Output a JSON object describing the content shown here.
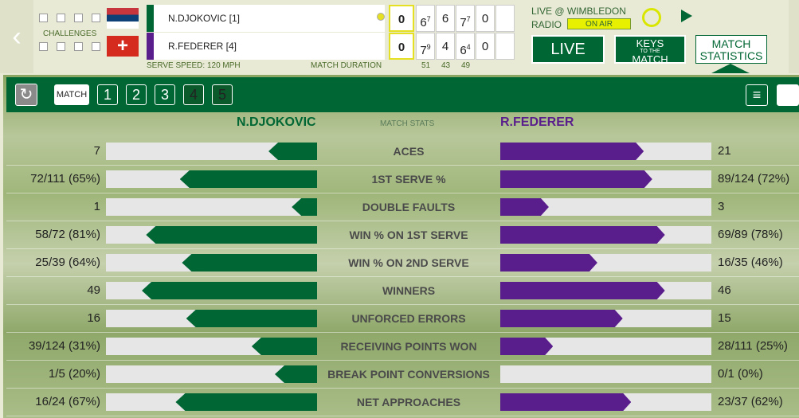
{
  "header": {
    "challenges_label": "CHALLENGES",
    "players": [
      {
        "name": "N.DJOKOVIC [1]",
        "game": "0",
        "sets": [
          {
            "games": "6",
            "tb": "7"
          },
          {
            "games": "6",
            "tb": null
          },
          {
            "games": "7",
            "tb": "7"
          },
          {
            "games": "0",
            "tb": null
          }
        ]
      },
      {
        "name": "R.FEDERER [4]",
        "game": "0",
        "sets": [
          {
            "games": "7",
            "tb": "9"
          },
          {
            "games": "4",
            "tb": null
          },
          {
            "games": "6",
            "tb": "4"
          },
          {
            "games": "0",
            "tb": null
          }
        ]
      }
    ],
    "serve_speed": "SERVE SPEED: 120 MPH",
    "match_duration": "MATCH DURATION",
    "durations": [
      "51",
      "43",
      "49"
    ],
    "live_text": "LIVE @ WIMBLEDON",
    "radio": "RADIO",
    "on_air": "ON AIR",
    "live_button": "LIVE",
    "keys_button": [
      "KEYS",
      "TO THE",
      "MATCH"
    ],
    "stats_button": [
      "MATCH",
      "STATISTICS"
    ]
  },
  "tabs": [
    "MATCH",
    "1",
    "2",
    "3",
    "4",
    "5"
  ],
  "stats": {
    "player1": "N.DJOKOVIC",
    "label": "MATCH STATS",
    "player2": "R.FEDERER",
    "rows": [
      {
        "label": "ACES",
        "p1": "7",
        "p2": "21",
        "p1_bar": 23,
        "p2_bar": 68
      },
      {
        "label": "1ST SERVE %",
        "p1": "72/111 (65%)",
        "p2": "89/124 (72%)",
        "p1_bar": 65,
        "p2_bar": 72
      },
      {
        "label": "DOUBLE FAULTS",
        "p1": "1",
        "p2": "3",
        "p1_bar": 12,
        "p2_bar": 23
      },
      {
        "label": "WIN % ON 1ST SERVE",
        "p1": "58/72 (81%)",
        "p2": "69/89 (78%)",
        "p1_bar": 81,
        "p2_bar": 78
      },
      {
        "label": "WIN % ON 2ND SERVE",
        "p1": "25/39 (64%)",
        "p2": "16/35 (46%)",
        "p1_bar": 64,
        "p2_bar": 46
      },
      {
        "label": "WINNERS",
        "p1": "49",
        "p2": "46",
        "p1_bar": 83,
        "p2_bar": 78
      },
      {
        "label": "UNFORCED ERRORS",
        "p1": "16",
        "p2": "15",
        "p1_bar": 62,
        "p2_bar": 58
      },
      {
        "label": "RECEIVING POINTS WON",
        "p1": "39/124 (31%)",
        "p2": "28/111 (25%)",
        "p1_bar": 31,
        "p2_bar": 25
      },
      {
        "label": "BREAK POINT CONVERSIONS",
        "p1": "1/5 (20%)",
        "p2": "0/1 (0%)",
        "p1_bar": 20,
        "p2_bar": 0
      },
      {
        "label": "NET APPROACHES",
        "p1": "16/24 (67%)",
        "p2": "23/37 (62%)",
        "p1_bar": 67,
        "p2_bar": 62
      }
    ]
  }
}
